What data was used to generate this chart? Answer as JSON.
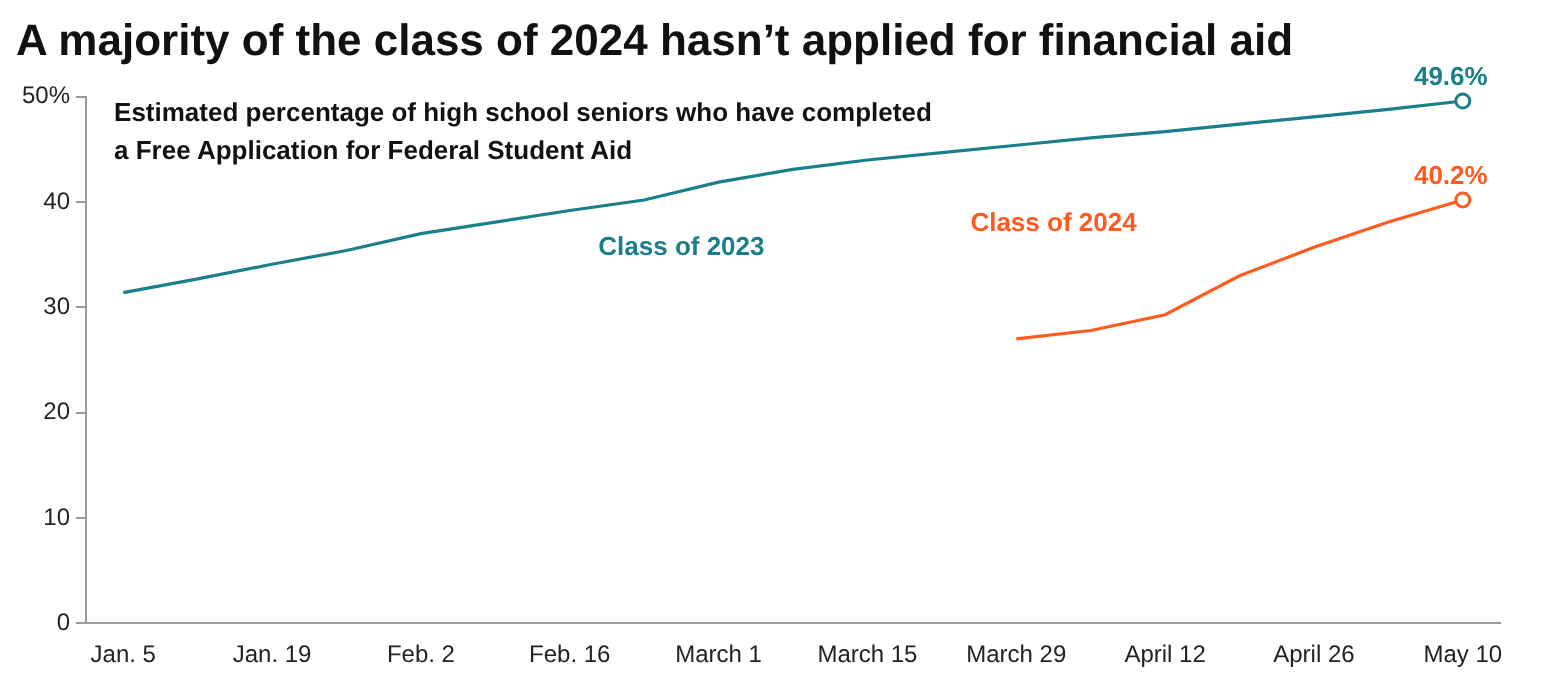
{
  "chart_data": {
    "type": "line",
    "title": "A majority of the class of 2024 hasn’t applied for financial aid",
    "subtitle": "Estimated percentage of high school seniors who have completed\na Free Application for Federal Student Aid",
    "categories": [
      "Jan. 5",
      null,
      "Jan. 19",
      null,
      "Feb. 2",
      null,
      "Feb. 16",
      null,
      "March 1",
      null,
      "March 15",
      null,
      "March 29",
      null,
      "April 12",
      null,
      "April 26",
      null,
      "May 10"
    ],
    "series": [
      {
        "name": "Class of 2023",
        "color": "#1a7f8a",
        "values": [
          31.4,
          32.7,
          34.1,
          35.4,
          37.0,
          38.1,
          39.2,
          40.2,
          41.9,
          43.1,
          44.0,
          44.7,
          45.4,
          46.1,
          46.7,
          47.4,
          48.1,
          48.8,
          49.6
        ],
        "value_labels": [
          null,
          null,
          null,
          null,
          null,
          null,
          null,
          null,
          null,
          null,
          null,
          null,
          null,
          null,
          null,
          null,
          null,
          null,
          "49.6%"
        ]
      },
      {
        "name": "Class of 2024",
        "color": "#ff5a1f",
        "values": [
          null,
          null,
          null,
          null,
          null,
          null,
          null,
          null,
          null,
          null,
          null,
          null,
          27.0,
          27.8,
          29.3,
          33.0,
          35.7,
          38.1,
          40.2
        ],
        "value_labels": [
          null,
          null,
          null,
          null,
          null,
          null,
          null,
          null,
          null,
          null,
          null,
          null,
          null,
          null,
          null,
          null,
          null,
          null,
          "40.2%"
        ]
      }
    ],
    "ylim": [
      0,
      50
    ],
    "yticks": [
      0,
      10,
      20,
      30,
      {
        "value": 50,
        "label": "50%"
      },
      40
    ],
    "grid": false,
    "legend": false,
    "line_style": "solid"
  }
}
